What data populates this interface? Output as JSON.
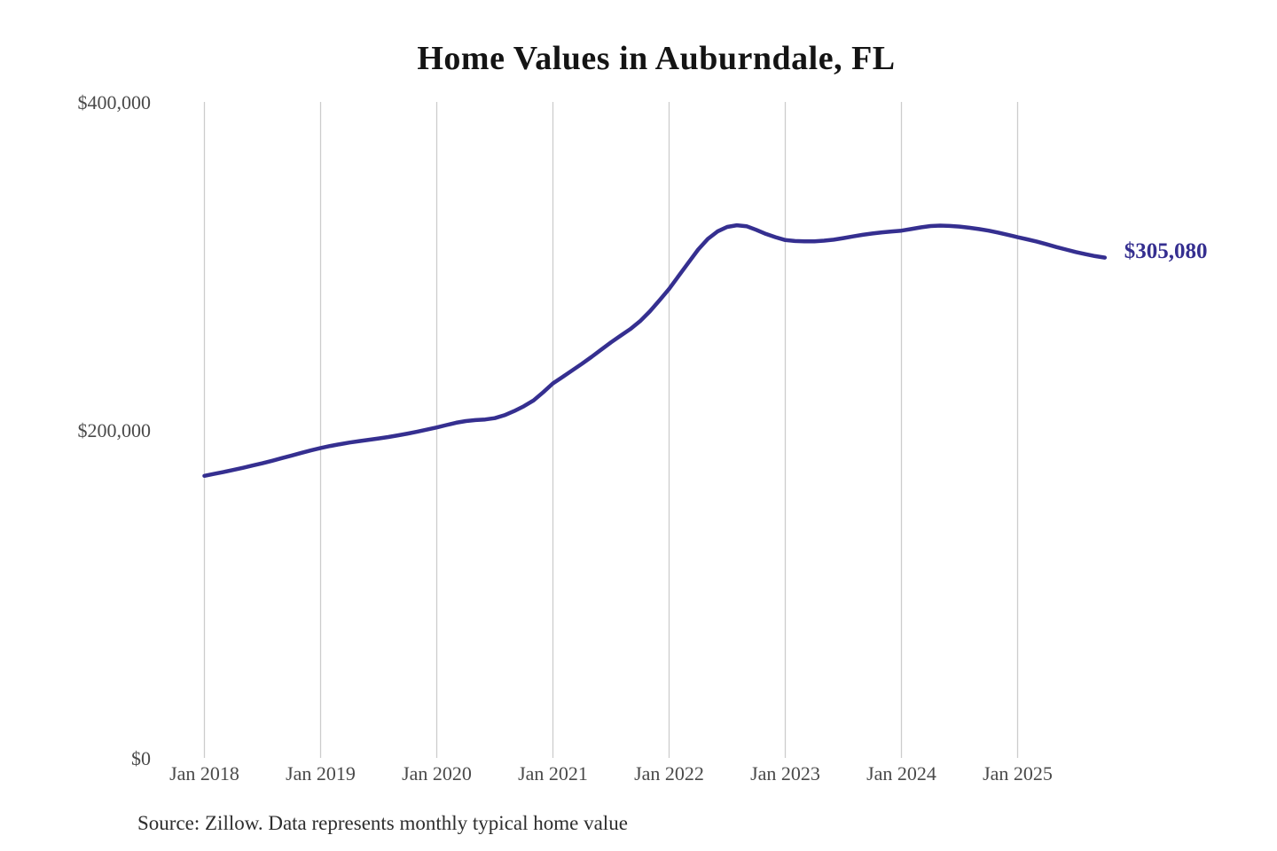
{
  "page": {
    "background": "#ffffff"
  },
  "chart_data": {
    "type": "line",
    "title": "Home Values in Auburndale, FL",
    "source_note": "Source: Zillow. Data represents monthly typical home value",
    "latest_value_label": "$305,080",
    "latest_value": 305080,
    "x_start_month": "Jan 2018",
    "x_end_month": "Oct 2025",
    "x_frequency": "monthly",
    "x_tick_labels": [
      "Jan 2018",
      "Jan 2019",
      "Jan 2020",
      "Jan 2021",
      "Jan 2022",
      "Jan 2023",
      "Jan 2024",
      "Jan 2025"
    ],
    "y_ticks": [
      {
        "label": "$400,000",
        "value": 400000
      },
      {
        "label": "$200,000",
        "value": 200000
      },
      {
        "label": "$0",
        "value": 0
      }
    ],
    "ylim": [
      0,
      400000
    ],
    "grid": "vertical",
    "legend_position": "none",
    "series": [
      {
        "name": "Monthly typical home value",
        "values": [
          172000,
          173200,
          174400,
          175600,
          176900,
          178300,
          179700,
          181200,
          182800,
          184400,
          186000,
          187500,
          189000,
          190200,
          191300,
          192300,
          193200,
          194000,
          194800,
          195700,
          196700,
          197800,
          199000,
          200200,
          201500,
          203000,
          204400,
          205400,
          206000,
          206400,
          207200,
          209000,
          211500,
          214500,
          218000,
          223000,
          228400,
          232300,
          236300,
          240400,
          244600,
          249000,
          253400,
          257500,
          261500,
          266300,
          272200,
          279000,
          286000,
          294000,
          302000,
          310000,
          316500,
          321000,
          323800,
          324800,
          324200,
          322000,
          319500,
          317500,
          315800,
          315200,
          315000,
          315000,
          315400,
          316000,
          317000,
          318000,
          319000,
          319800,
          320500,
          321000,
          321500,
          322500,
          323500,
          324300,
          324600,
          324400,
          324000,
          323300,
          322500,
          321500,
          320300,
          319000,
          317500,
          316200,
          314800,
          313200,
          311500,
          310000,
          308500,
          307200,
          306000,
          305080
        ]
      }
    ],
    "colors": {
      "line": "#352f90",
      "grid": "#cccccc",
      "axis_text": "#4a4a4a",
      "title_text": "#141414",
      "source_text": "#2e2e2e",
      "value_label": "#352f90"
    }
  }
}
